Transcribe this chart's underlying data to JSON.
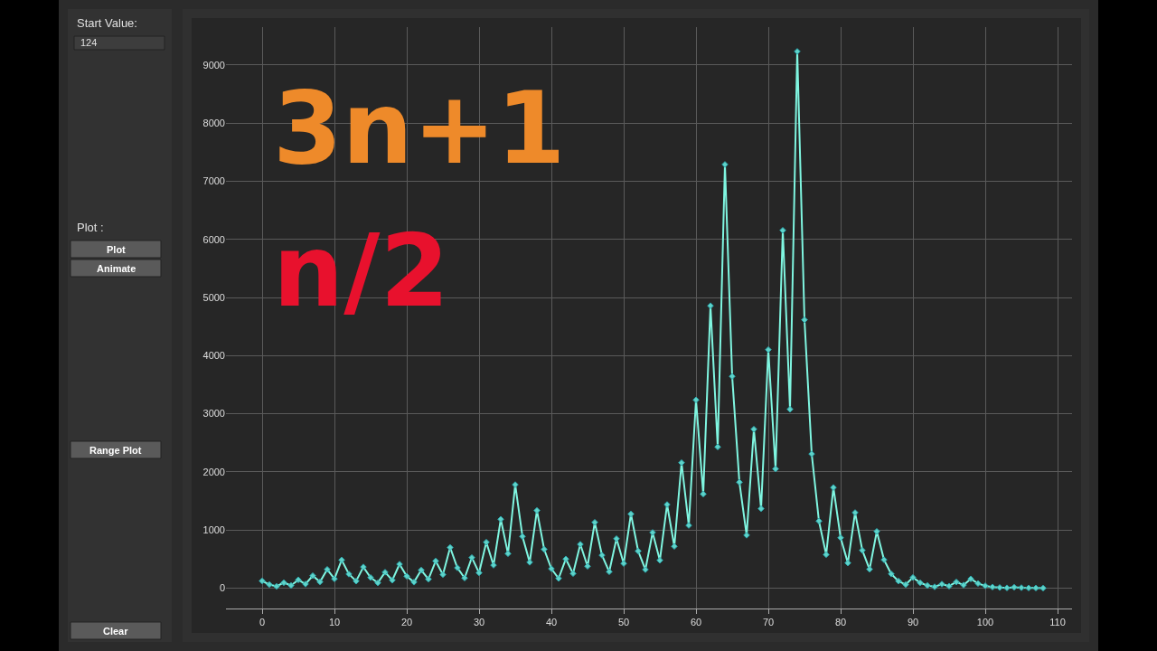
{
  "chart_data": {
    "type": "line",
    "x": [
      0,
      1,
      2,
      3,
      4,
      5,
      6,
      7,
      8,
      9,
      10,
      11,
      12,
      13,
      14,
      15,
      16,
      17,
      18,
      19,
      20,
      21,
      22,
      23,
      24,
      25,
      26,
      27,
      28,
      29,
      30,
      31,
      32,
      33,
      34,
      35,
      36,
      37,
      38,
      39,
      40,
      41,
      42,
      43,
      44,
      45,
      46,
      47,
      48,
      49,
      50,
      51,
      52,
      53,
      54,
      55,
      56,
      57,
      58,
      59,
      60,
      61,
      62,
      63,
      64,
      65,
      66,
      67,
      68,
      69,
      70,
      71,
      72,
      73,
      74,
      75,
      76,
      77,
      78,
      79,
      80,
      81,
      82,
      83,
      84,
      85,
      86,
      87,
      88,
      89,
      90,
      91,
      92,
      93,
      94,
      95,
      96,
      97,
      98,
      99,
      100,
      101,
      102,
      103,
      104,
      105,
      106,
      107,
      108
    ],
    "series": [
      {
        "color": "#7ff5e0",
        "values": [
          124,
          62,
          31,
          94,
          47,
          142,
          71,
          214,
          107,
          322,
          161,
          484,
          242,
          121,
          364,
          182,
          91,
          274,
          137,
          412,
          206,
          103,
          310,
          155,
          466,
          233,
          700,
          350,
          175,
          526,
          263,
          790,
          395,
          1186,
          593,
          1780,
          890,
          445,
          1336,
          668,
          334,
          167,
          502,
          251,
          754,
          377,
          1132,
          566,
          283,
          850,
          425,
          1276,
          638,
          319,
          958,
          479,
          1438,
          719,
          2158,
          1079,
          3238,
          1619,
          4858,
          2429,
          7288,
          3644,
          1822,
          911,
          2734,
          1367,
          4102,
          2051,
          6154,
          3077,
          9232,
          4616,
          2308,
          1154,
          577,
          1732,
          866,
          433,
          1300,
          650,
          325,
          976,
          488,
          244,
          122,
          61,
          184,
          92,
          46,
          23,
          70,
          35,
          106,
          53,
          160,
          80,
          40,
          20,
          10,
          5,
          16,
          8,
          4,
          2,
          1
        ]
      }
    ],
    "xlim": [
      -5,
      112
    ],
    "xticks": [
      0,
      10,
      20,
      30,
      40,
      50,
      60,
      70,
      80,
      90,
      100,
      110
    ],
    "ylim": [
      -350,
      9650
    ],
    "yticks": [
      0,
      1000,
      2000,
      3000,
      4000,
      5000,
      6000,
      7000,
      8000,
      9000
    ],
    "grid": true,
    "marker": "diamond",
    "line_style": "solid",
    "annotations": [
      "3n+1",
      "n/2",
      "Start Value:",
      "124",
      "Plot :",
      "Plot",
      "Animate",
      "Range Plot",
      "Clear"
    ]
  }
}
